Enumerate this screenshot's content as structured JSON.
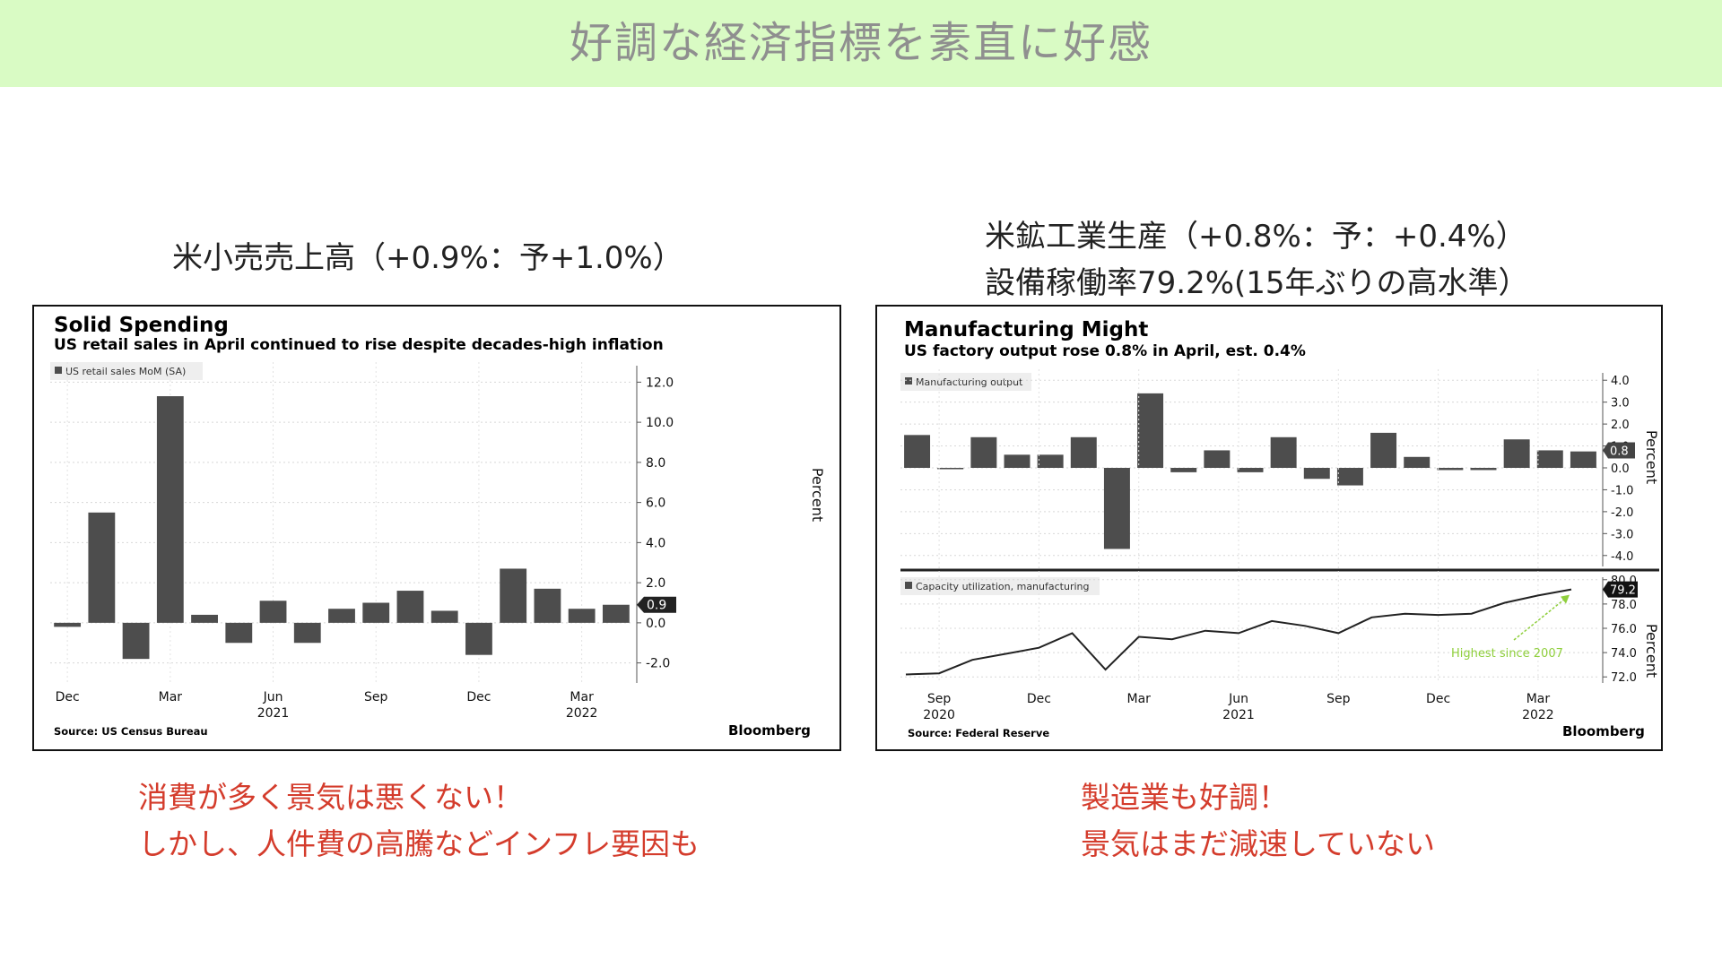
{
  "slide_title": "好調な経済指標を素直に好感",
  "left": {
    "caption": "米小売売上高（+0.9%：予+1.0%）",
    "note_lines": [
      "消費が多く景気は悪くない！",
      "しかし、人件費の高騰などインフレ要因も"
    ]
  },
  "right": {
    "caption_line1": "米鉱工業生産（+0.8%：予：+0.4%）",
    "caption_line2": "設備稼働率79.2%(15年ぶりの高水準）",
    "note_lines": [
      "製造業も好調！",
      "景気はまだ減速していない"
    ]
  },
  "colors": {
    "banner_bg": "#d9fbc4",
    "bar": "#4d4d4d",
    "note_red": "#d43c2c",
    "annotation_green": "#8fcf3c"
  },
  "chart_data": [
    {
      "type": "bar",
      "title": "Solid Spending",
      "subtitle": "US retail sales in April continued to rise despite decades-high inflation",
      "legend": "US retail sales MoM (SA)",
      "ylabel": "Percent",
      "source": "Source: US Census Bureau",
      "brand": "Bloomberg",
      "ylim": [
        -3,
        13
      ],
      "yticks": [
        12.0,
        10.0,
        8.0,
        6.0,
        4.0,
        2.0,
        0.0,
        -2.0
      ],
      "categories": [
        "Dec 2020",
        "Jan 2021",
        "Feb 2021",
        "Mar 2021",
        "Apr 2021",
        "May 2021",
        "Jun 2021",
        "Jul 2021",
        "Aug 2021",
        "Sep 2021",
        "Oct 2021",
        "Nov 2021",
        "Dec 2021",
        "Jan 2022",
        "Feb 2022",
        "Mar 2022",
        "Apr 2022"
      ],
      "values": [
        -0.2,
        5.5,
        -1.8,
        11.3,
        0.4,
        -1.0,
        1.1,
        -1.0,
        0.7,
        1.0,
        1.6,
        0.6,
        -1.6,
        2.7,
        1.7,
        0.7,
        0.9
      ],
      "x_tick_labels": [
        {
          "label": "Dec",
          "year": "",
          "index": 0
        },
        {
          "label": "Mar",
          "year": "",
          "index": 3
        },
        {
          "label": "Jun",
          "year": "2021",
          "index": 6
        },
        {
          "label": "Sep",
          "year": "",
          "index": 9
        },
        {
          "label": "Dec",
          "year": "",
          "index": 12
        },
        {
          "label": "Mar",
          "year": "2022",
          "index": 15
        }
      ],
      "last_value_label": "0.9",
      "grid": true
    },
    {
      "type": "bar",
      "title": "Manufacturing Might",
      "subtitle": "US factory output rose 0.8% in April, est. 0.4%",
      "legend": "Manufacturing output",
      "ylabel": "Percent",
      "ylim": [
        -4.5,
        4.5
      ],
      "yticks": [
        4.0,
        3.0,
        2.0,
        1.0,
        0.0,
        -1.0,
        -2.0,
        -3.0,
        -4.0
      ],
      "categories": [
        "Sep 2020",
        "Oct 2020",
        "Nov 2020",
        "Dec 2020",
        "Jan 2021",
        "Feb 2021",
        "Mar 2021",
        "Apr 2021",
        "May 2021",
        "Jun 2021",
        "Jul 2021",
        "Aug 2021",
        "Sep 2021",
        "Oct 2021",
        "Nov 2021",
        "Dec 2021",
        "Jan 2022",
        "Feb 2022",
        "Mar 2022",
        "Apr 2022",
        "May 2022"
      ],
      "values": [
        1.5,
        0.0,
        1.4,
        0.6,
        0.6,
        1.4,
        -3.7,
        3.4,
        -0.2,
        0.8,
        -0.2,
        1.4,
        -0.5,
        -0.8,
        1.6,
        0.5,
        -0.1,
        -0.1,
        1.3,
        0.8,
        0.75
      ],
      "last_value_label": "0.8",
      "grid": true
    },
    {
      "type": "line",
      "legend": "Capacity utilization, manufacturing",
      "ylabel": "Percent",
      "source": "Source: Federal Reserve",
      "brand": "Bloomberg",
      "ylim": [
        71.5,
        80.5
      ],
      "yticks": [
        80.0,
        78.0,
        76.0,
        74.0,
        72.0
      ],
      "x": [
        "Aug 2020",
        "Sep 2020",
        "Oct 2020",
        "Nov 2020",
        "Dec 2020",
        "Jan 2021",
        "Feb 2021",
        "Mar 2021",
        "Apr 2021",
        "May 2021",
        "Jun 2021",
        "Jul 2021",
        "Aug 2021",
        "Sep 2021",
        "Oct 2021",
        "Nov 2021",
        "Dec 2021",
        "Jan 2022",
        "Feb 2022",
        "Mar 2022",
        "Apr 2022"
      ],
      "values": [
        72.2,
        72.3,
        73.4,
        73.9,
        74.4,
        75.6,
        72.6,
        75.3,
        75.1,
        75.8,
        75.6,
        76.6,
        76.2,
        75.6,
        76.9,
        77.2,
        77.1,
        77.2,
        78.1,
        78.7,
        79.2
      ],
      "x_tick_labels": [
        {
          "label": "Sep",
          "year": "2020",
          "index": 1
        },
        {
          "label": "Dec",
          "year": "",
          "index": 4
        },
        {
          "label": "Mar",
          "year": "",
          "index": 7
        },
        {
          "label": "Jun",
          "year": "2021",
          "index": 10
        },
        {
          "label": "Sep",
          "year": "",
          "index": 13
        },
        {
          "label": "Dec",
          "year": "",
          "index": 16
        },
        {
          "label": "Mar",
          "year": "2022",
          "index": 19
        }
      ],
      "last_value_label": "79.2",
      "annotation": "Highest since 2007",
      "grid": true
    }
  ]
}
